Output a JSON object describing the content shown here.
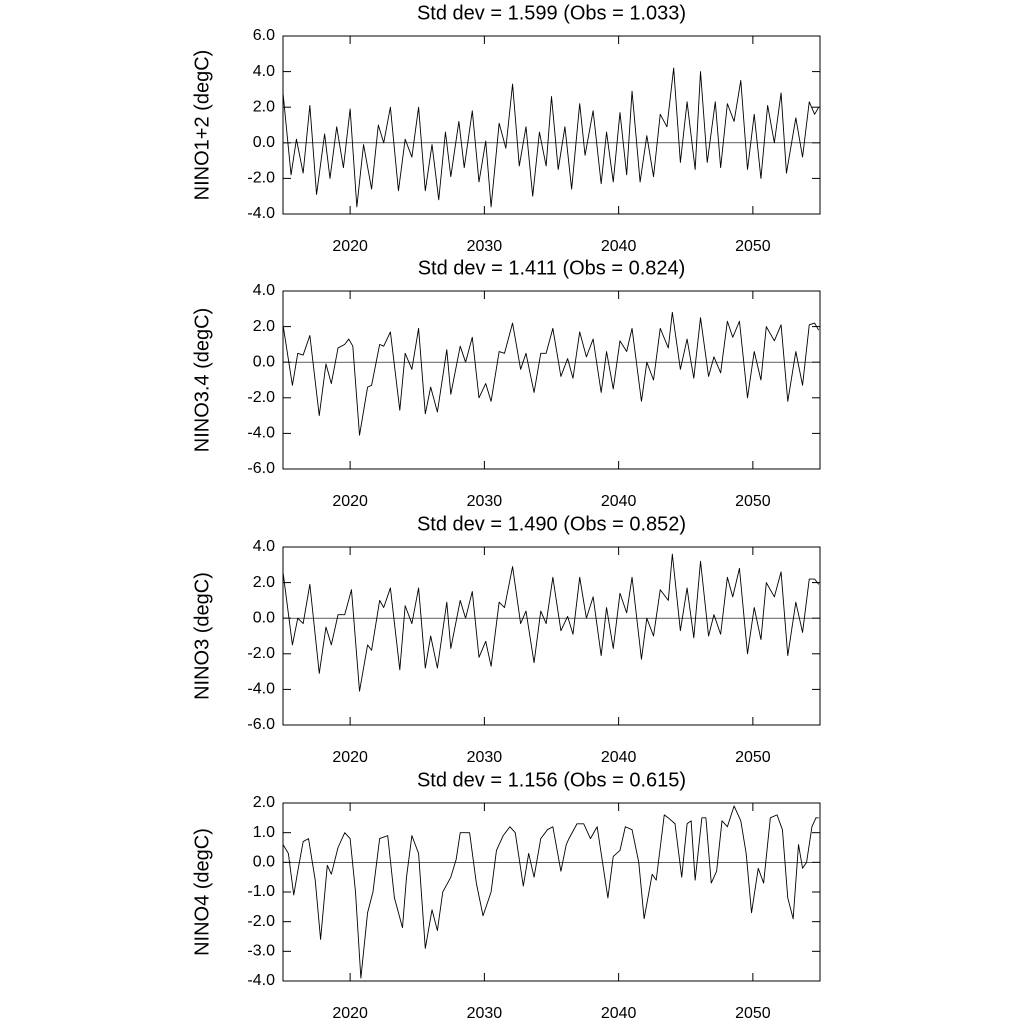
{
  "chart_data": [
    {
      "type": "line",
      "title": "Std dev = 1.599 (Obs = 1.033)",
      "y_label": "NINO1+2 (degC)",
      "color": "#000000",
      "xlim": [
        2015,
        2055
      ],
      "xticks": [
        2020,
        2030,
        2040,
        2050
      ],
      "ylim": [
        -4,
        6
      ],
      "yticks": [
        {
          "value": -4,
          "label": "-4.0"
        },
        {
          "value": -2,
          "label": "-2.0"
        },
        {
          "value": 0,
          "label": "0.0"
        },
        {
          "value": 2,
          "label": "2.0"
        },
        {
          "value": 4,
          "label": "4.0"
        },
        {
          "value": 6,
          "label": "6.0"
        }
      ],
      "x": [
        2015.0,
        2015.6,
        2016.0,
        2016.5,
        2017.0,
        2017.5,
        2018.1,
        2018.5,
        2019.0,
        2019.5,
        2020.0,
        2020.5,
        2021.0,
        2021.6,
        2022.1,
        2022.5,
        2023.0,
        2023.6,
        2024.1,
        2024.6,
        2025.1,
        2025.6,
        2026.1,
        2026.6,
        2027.1,
        2027.5,
        2028.1,
        2028.5,
        2029.1,
        2029.6,
        2030.1,
        2030.5,
        2031.1,
        2031.6,
        2032.1,
        2032.6,
        2033.1,
        2033.6,
        2034.1,
        2034.6,
        2035.0,
        2035.5,
        2036.0,
        2036.5,
        2037.1,
        2037.5,
        2038.1,
        2038.7,
        2039.1,
        2039.6,
        2040.1,
        2040.6,
        2041.0,
        2041.6,
        2042.1,
        2042.6,
        2043.1,
        2043.6,
        2044.1,
        2044.6,
        2045.1,
        2045.7,
        2046.1,
        2046.6,
        2047.2,
        2047.6,
        2048.1,
        2048.6,
        2049.1,
        2049.6,
        2050.1,
        2050.6,
        2051.1,
        2051.6,
        2052.1,
        2052.5,
        2053.2,
        2053.7,
        2054.2,
        2054.6,
        2054.9
      ],
      "values": [
        2.8,
        -1.8,
        0.2,
        -1.7,
        2.1,
        -2.9,
        0.5,
        -2.0,
        0.9,
        -1.4,
        1.9,
        -3.6,
        -0.1,
        -2.6,
        1.0,
        0.0,
        2.0,
        -2.7,
        0.2,
        -0.8,
        2.0,
        -2.7,
        -0.1,
        -3.2,
        0.6,
        -1.9,
        1.2,
        -1.4,
        1.8,
        -2.2,
        0.1,
        -3.6,
        1.1,
        -0.3,
        3.3,
        -1.3,
        0.9,
        -3.0,
        0.6,
        -1.3,
        2.6,
        -1.5,
        0.9,
        -2.6,
        2.2,
        -0.7,
        1.8,
        -2.3,
        0.6,
        -2.2,
        1.7,
        -1.8,
        2.9,
        -2.2,
        0.4,
        -1.9,
        1.6,
        0.9,
        4.2,
        -1.1,
        2.3,
        -1.5,
        4.0,
        -1.1,
        2.3,
        -1.4,
        2.2,
        1.2,
        3.5,
        -1.5,
        1.6,
        -2.0,
        2.1,
        0.0,
        2.8,
        -1.7,
        1.4,
        -0.8,
        2.3,
        1.6,
        2.0
      ]
    },
    {
      "type": "line",
      "title": "Std dev = 1.411 (Obs = 0.824)",
      "y_label": "NINO3.4 (degC)",
      "color": "#000000",
      "xlim": [
        2015,
        2055
      ],
      "xticks": [
        2020,
        2030,
        2040,
        2050
      ],
      "ylim": [
        -6,
        4
      ],
      "yticks": [
        {
          "value": -6,
          "label": "-6.0"
        },
        {
          "value": -4,
          "label": "-4.0"
        },
        {
          "value": -2,
          "label": "-2.0"
        },
        {
          "value": 0,
          "label": "0.0"
        },
        {
          "value": 2,
          "label": "2.0"
        },
        {
          "value": 4,
          "label": "4.0"
        }
      ],
      "x": [
        2015.0,
        2015.7,
        2016.1,
        2016.5,
        2017.0,
        2017.7,
        2018.2,
        2018.6,
        2019.1,
        2019.6,
        2019.9,
        2020.2,
        2020.7,
        2021.3,
        2021.6,
        2022.2,
        2022.5,
        2023.0,
        2023.7,
        2024.1,
        2024.6,
        2025.1,
        2025.6,
        2026.0,
        2026.5,
        2027.2,
        2027.5,
        2028.2,
        2028.6,
        2029.1,
        2029.6,
        2030.1,
        2030.5,
        2031.1,
        2031.5,
        2032.1,
        2032.7,
        2033.1,
        2033.7,
        2034.2,
        2034.6,
        2035.1,
        2035.7,
        2036.2,
        2036.6,
        2037.1,
        2037.6,
        2038.1,
        2038.7,
        2039.1,
        2039.6,
        2040.1,
        2040.6,
        2041.0,
        2041.7,
        2042.1,
        2042.6,
        2043.1,
        2043.7,
        2044.0,
        2044.6,
        2045.1,
        2045.6,
        2046.1,
        2046.7,
        2047.1,
        2047.6,
        2048.1,
        2048.5,
        2049.0,
        2049.6,
        2050.1,
        2050.6,
        2051.0,
        2051.6,
        2052.1,
        2052.6,
        2053.2,
        2053.7,
        2054.2,
        2054.6,
        2054.9
      ],
      "values": [
        2.1,
        -1.3,
        0.5,
        0.4,
        1.5,
        -3.0,
        -0.1,
        -1.2,
        0.8,
        1.0,
        1.3,
        0.9,
        -4.1,
        -1.4,
        -1.3,
        1.0,
        0.9,
        1.7,
        -2.7,
        0.5,
        -0.4,
        1.9,
        -2.9,
        -1.4,
        -2.8,
        0.7,
        -1.8,
        0.9,
        0.0,
        1.4,
        -2.0,
        -1.2,
        -2.2,
        0.6,
        0.5,
        2.2,
        -0.4,
        0.5,
        -1.7,
        0.5,
        0.5,
        1.9,
        -0.8,
        0.2,
        -0.9,
        1.7,
        0.3,
        1.3,
        -1.7,
        0.6,
        -1.5,
        1.2,
        0.6,
        1.9,
        -2.2,
        0.0,
        -1.0,
        1.9,
        0.8,
        2.8,
        -0.4,
        1.3,
        -0.9,
        2.5,
        -0.8,
        0.3,
        -0.6,
        2.3,
        1.4,
        2.3,
        -2.0,
        0.6,
        -1.0,
        2.0,
        1.2,
        2.1,
        -2.2,
        0.6,
        -1.3,
        2.1,
        2.2,
        1.8
      ]
    },
    {
      "type": "line",
      "title": "Std dev = 1.490 (Obs = 0.852)",
      "y_label": "NINO3 (degC)",
      "color": "#000000",
      "xlim": [
        2015,
        2055
      ],
      "xticks": [
        2020,
        2030,
        2040,
        2050
      ],
      "ylim": [
        -6,
        4
      ],
      "yticks": [
        {
          "value": -6,
          "label": "-6.0"
        },
        {
          "value": -4,
          "label": "-4.0"
        },
        {
          "value": -2,
          "label": "-2.0"
        },
        {
          "value": 0,
          "label": "0.0"
        },
        {
          "value": 2,
          "label": "2.0"
        },
        {
          "value": 4,
          "label": "4.0"
        }
      ],
      "x": [
        2015.0,
        2015.7,
        2016.1,
        2016.5,
        2017.0,
        2017.7,
        2018.2,
        2018.6,
        2019.1,
        2019.6,
        2020.1,
        2020.7,
        2021.3,
        2021.6,
        2022.2,
        2022.5,
        2023.0,
        2023.7,
        2024.1,
        2024.6,
        2025.1,
        2025.6,
        2026.0,
        2026.5,
        2027.2,
        2027.5,
        2028.2,
        2028.6,
        2029.1,
        2029.6,
        2030.1,
        2030.5,
        2031.1,
        2031.5,
        2032.1,
        2032.7,
        2033.1,
        2033.7,
        2034.2,
        2034.6,
        2035.1,
        2035.7,
        2036.2,
        2036.6,
        2037.1,
        2037.6,
        2038.1,
        2038.7,
        2039.1,
        2039.6,
        2040.1,
        2040.6,
        2041.0,
        2041.7,
        2042.1,
        2042.6,
        2043.1,
        2043.7,
        2044.0,
        2044.6,
        2045.1,
        2045.6,
        2046.1,
        2046.7,
        2047.1,
        2047.6,
        2048.1,
        2048.5,
        2049.0,
        2049.6,
        2050.1,
        2050.6,
        2051.0,
        2051.6,
        2052.1,
        2052.6,
        2053.2,
        2053.7,
        2054.2,
        2054.6,
        2054.9
      ],
      "values": [
        2.6,
        -1.5,
        0.0,
        -0.3,
        1.9,
        -3.1,
        -0.5,
        -1.5,
        0.2,
        0.2,
        1.6,
        -4.1,
        -1.5,
        -1.8,
        1.0,
        0.6,
        1.7,
        -2.9,
        0.7,
        -0.3,
        1.7,
        -2.8,
        -1.0,
        -2.8,
        0.9,
        -1.7,
        1.0,
        0.0,
        1.5,
        -2.2,
        -1.3,
        -2.7,
        0.9,
        0.6,
        2.9,
        -0.3,
        0.4,
        -2.5,
        0.4,
        -0.3,
        2.3,
        -0.7,
        0.1,
        -0.9,
        2.3,
        0.0,
        1.2,
        -2.1,
        0.6,
        -1.7,
        1.4,
        0.3,
        2.3,
        -2.3,
        0.0,
        -1.0,
        1.6,
        1.0,
        3.6,
        -0.7,
        1.7,
        -1.1,
        3.2,
        -1.0,
        0.2,
        -0.9,
        2.3,
        1.2,
        2.8,
        -2.0,
        0.6,
        -1.2,
        2.0,
        1.2,
        2.6,
        -2.1,
        0.9,
        -0.8,
        2.2,
        2.2,
        1.9
      ]
    },
    {
      "type": "line",
      "title": "Std dev = 1.156 (Obs = 0.615)",
      "y_label": "NINO4 (degC)",
      "color": "#000000",
      "xlim": [
        2015,
        2055
      ],
      "xticks": [
        2020,
        2030,
        2040,
        2050
      ],
      "ylim": [
        -4,
        2
      ],
      "yticks": [
        {
          "value": -4,
          "label": "-4.0"
        },
        {
          "value": -3,
          "label": "-3.0"
        },
        {
          "value": -2,
          "label": "-2.0"
        },
        {
          "value": -1,
          "label": "-1.0"
        },
        {
          "value": 0,
          "label": "0.0"
        },
        {
          "value": 1,
          "label": "1.0"
        },
        {
          "value": 2,
          "label": "2.0"
        }
      ],
      "x": [
        2015.0,
        2015.4,
        2015.8,
        2016.1,
        2016.5,
        2016.9,
        2017.4,
        2017.8,
        2018.3,
        2018.6,
        2019.1,
        2019.6,
        2020.0,
        2020.4,
        2020.8,
        2021.3,
        2021.7,
        2022.2,
        2022.8,
        2023.3,
        2023.9,
        2024.2,
        2024.6,
        2025.1,
        2025.6,
        2026.1,
        2026.5,
        2026.9,
        2027.5,
        2027.9,
        2028.2,
        2028.9,
        2029.4,
        2029.9,
        2030.5,
        2030.9,
        2031.4,
        2031.9,
        2032.3,
        2032.9,
        2033.3,
        2033.7,
        2034.2,
        2034.7,
        2035.1,
        2035.7,
        2036.1,
        2036.3,
        2036.9,
        2037.4,
        2037.9,
        2038.4,
        2038.9,
        2039.2,
        2039.6,
        2040.1,
        2040.5,
        2041.0,
        2041.5,
        2041.9,
        2042.5,
        2042.8,
        2043.4,
        2043.7,
        2044.2,
        2044.7,
        2045.1,
        2045.4,
        2045.7,
        2046.2,
        2046.5,
        2046.9,
        2047.3,
        2047.7,
        2048.1,
        2048.6,
        2049.1,
        2049.5,
        2049.9,
        2050.4,
        2050.8,
        2051.3,
        2051.8,
        2052.2,
        2052.6,
        2053.0,
        2053.4,
        2053.7,
        2054.0,
        2054.4,
        2054.7,
        2054.9
      ],
      "values": [
        0.6,
        0.3,
        -1.1,
        -0.3,
        0.7,
        0.8,
        -0.6,
        -2.6,
        -0.1,
        -0.4,
        0.5,
        1.0,
        0.8,
        -1.0,
        -3.9,
        -1.7,
        -1.0,
        0.8,
        0.9,
        -1.2,
        -2.2,
        -0.5,
        0.9,
        0.3,
        -2.9,
        -1.6,
        -2.3,
        -1.0,
        -0.5,
        0.1,
        1.0,
        1.0,
        -0.7,
        -1.8,
        -1.0,
        0.4,
        0.9,
        1.2,
        1.0,
        -0.8,
        0.3,
        -0.5,
        0.8,
        1.1,
        1.2,
        -0.3,
        0.6,
        0.8,
        1.3,
        1.3,
        0.8,
        1.2,
        -0.3,
        -1.2,
        0.2,
        0.4,
        1.2,
        1.1,
        0.0,
        -1.9,
        -0.4,
        -0.6,
        1.6,
        1.5,
        1.3,
        -0.5,
        1.3,
        1.4,
        -0.6,
        1.5,
        1.5,
        -0.7,
        -0.3,
        1.4,
        1.2,
        1.9,
        1.4,
        0.3,
        -1.7,
        -0.2,
        -0.7,
        1.5,
        1.6,
        1.1,
        -1.2,
        -1.9,
        0.6,
        -0.2,
        0.0,
        1.2,
        1.5,
        1.5
      ]
    }
  ]
}
